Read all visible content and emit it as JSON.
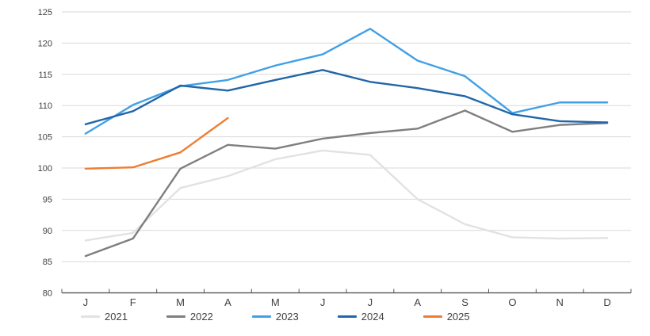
{
  "chart_data": {
    "type": "line",
    "title": "",
    "xlabel": "",
    "ylabel": "",
    "x_categories": [
      "J",
      "F",
      "M",
      "A",
      "M",
      "J",
      "J",
      "A",
      "S",
      "O",
      "N",
      "D"
    ],
    "ylim": [
      80,
      125
    ],
    "y_tick_labels": [
      "80",
      "85",
      "90",
      "95",
      "100",
      "105",
      "110",
      "115",
      "120",
      "125"
    ],
    "grid": "horizontal",
    "legend_position": "bottom",
    "colors": {
      "gridline": "#D9D9D9",
      "axis_line": "#595959",
      "text": "#404040"
    },
    "series": [
      {
        "name": "2021",
        "color": "#E2E2E2",
        "values": [
          88.4,
          89.6,
          96.8,
          98.7,
          101.4,
          102.8,
          102.1,
          95.0,
          91.0,
          88.9,
          88.7,
          88.8
        ]
      },
      {
        "name": "2022",
        "color": "#7F7F7F",
        "values": [
          85.9,
          88.7,
          99.9,
          103.7,
          103.1,
          104.7,
          105.6,
          106.3,
          109.2,
          105.8,
          106.9,
          107.2
        ]
      },
      {
        "name": "2023",
        "color": "#41A0E6",
        "values": [
          105.5,
          110.1,
          113.1,
          114.1,
          116.4,
          118.2,
          122.3,
          117.2,
          114.7,
          108.8,
          110.5,
          110.5
        ]
      },
      {
        "name": "2024",
        "color": "#2166A8",
        "values": [
          107.0,
          109.1,
          113.2,
          112.4,
          114.1,
          115.7,
          113.8,
          112.8,
          111.5,
          108.6,
          107.5,
          107.3
        ]
      },
      {
        "name": "2025",
        "color": "#ED7D31",
        "values": [
          99.9,
          100.1,
          102.5,
          108.0
        ]
      }
    ]
  }
}
